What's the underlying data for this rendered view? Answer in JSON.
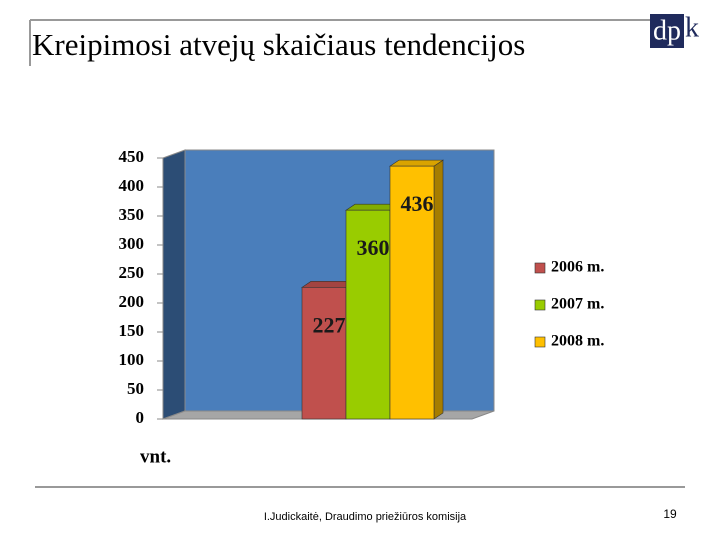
{
  "chart_data": {
    "type": "bar",
    "title": "Kreipimosi atvejų skaičiaus tendencijos",
    "y_label": "vnt.",
    "categories": [
      null
    ],
    "series": [
      {
        "name": "2006 m.",
        "color": "#c0504d",
        "values": [
          227
        ]
      },
      {
        "name": "2007 m.",
        "color": "#99cc00",
        "values": [
          360
        ]
      },
      {
        "name": "2008 m.",
        "color": "#ffc000",
        "values": [
          436
        ]
      }
    ],
    "ylim": [
      0,
      450
    ],
    "yticks": [
      0,
      50,
      100,
      150,
      200,
      250,
      300,
      350,
      400,
      450
    ],
    "grid": false,
    "legend": "right"
  },
  "slide": {
    "logo": {
      "boxed": "dp",
      "rest": "k"
    },
    "footer": "I.Judickaitė, Draudimo priežiūros komisija",
    "page_number": "19"
  }
}
